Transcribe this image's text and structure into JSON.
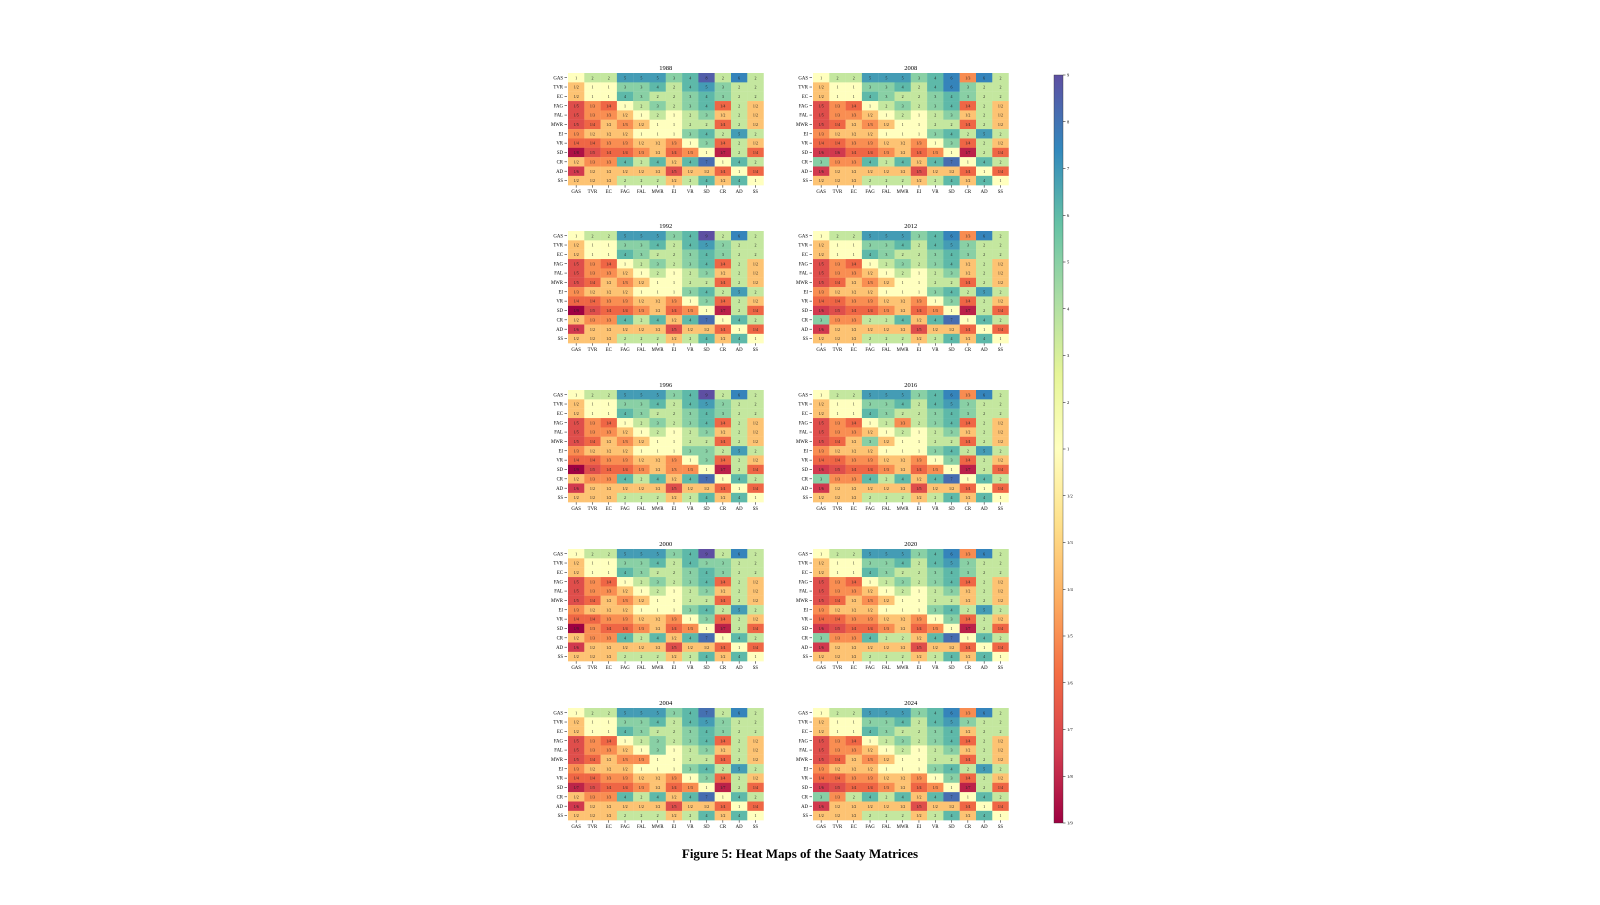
{
  "caption": "Figure 5: Heat Maps of the Saaty Matrices",
  "chart_data": {
    "type": "heatmap",
    "labels": [
      "GAS",
      "TVR",
      "EC",
      "FAG",
      "FAL",
      "MWR",
      "EI",
      "VR",
      "SD",
      "CR",
      "AD",
      "SS"
    ],
    "colorbar": {
      "ticks": [
        "1/9",
        "1/8",
        "1/7",
        "1/6",
        "1/5",
        "1/4",
        "1/3",
        "1/2",
        "1",
        "2",
        "3",
        "4",
        "5",
        "6",
        "7",
        "8",
        "9"
      ],
      "colormap": "Spectral",
      "colors": [
        "#9e0142",
        "#d53e4f",
        "#f46d43",
        "#fdae61",
        "#fee08b",
        "#ffffbf",
        "#e6f598",
        "#abdda4",
        "#66c2a5",
        "#3288bd",
        "#5e4fa2"
      ]
    },
    "matrix_upper_base": [
      [
        1,
        2,
        2,
        5,
        5,
        5,
        3,
        4,
        8,
        2,
        6,
        2
      ],
      [
        1,
        1,
        1,
        3,
        3,
        4,
        2,
        4,
        5,
        3,
        2,
        2
      ],
      [
        1,
        1,
        1,
        4,
        3,
        2,
        2,
        3,
        4,
        3,
        2,
        2
      ],
      [
        1,
        1,
        1,
        1,
        2,
        3,
        2,
        3,
        4,
        0.25,
        2,
        0.5
      ],
      [
        1,
        1,
        1,
        1,
        1,
        2,
        1,
        2,
        3,
        0.5,
        2,
        0.5
      ],
      [
        1,
        1,
        1,
        1,
        1,
        1,
        1,
        2,
        2,
        0.25,
        2,
        0.5
      ],
      [
        1,
        1,
        1,
        1,
        1,
        1,
        1,
        3,
        4,
        2,
        5,
        2
      ],
      [
        1,
        1,
        1,
        1,
        1,
        1,
        1,
        1,
        3,
        0.25,
        2,
        0.5
      ],
      [
        1,
        1,
        1,
        1,
        1,
        1,
        1,
        1,
        1,
        0.14,
        2,
        0.25
      ],
      [
        1,
        1,
        1,
        1,
        1,
        1,
        1,
        1,
        1,
        1,
        4,
        2
      ],
      [
        1,
        1,
        1,
        1,
        1,
        1,
        1,
        1,
        1,
        1,
        1,
        0.25
      ],
      [
        1,
        1,
        1,
        1,
        1,
        1,
        1,
        1,
        1,
        1,
        1,
        1
      ]
    ],
    "panels": [
      {
        "title": "1988",
        "adjust": {}
      },
      {
        "title": "2008",
        "adjust": {
          "0-8": 6,
          "0-9": 0.33,
          "1-8": 6
        }
      },
      {
        "title": "1992",
        "adjust": {
          "0-8": 9
        }
      },
      {
        "title": "2012",
        "adjust": {
          "0-8": 6,
          "0-9": 0.33,
          "3-9": 0.5
        }
      },
      {
        "title": "1996",
        "adjust": {
          "0-8": 9,
          "6-8": 3
        }
      },
      {
        "title": "2016",
        "adjust": {
          "0-8": 6,
          "0-9": 0.33,
          "3-5": 0.33
        }
      },
      {
        "title": "2000",
        "adjust": {
          "0-8": 9,
          "1-8": 3
        }
      },
      {
        "title": "2020",
        "adjust": {
          "0-8": 6,
          "0-9": 0.33,
          "5-9": 0.5
        }
      },
      {
        "title": "2004",
        "adjust": {
          "0-8": 7,
          "4-5": 3
        }
      },
      {
        "title": "2024",
        "adjust": {
          "0-8": 6,
          "0-9": 0.33,
          "2-9": 0.5
        }
      }
    ]
  }
}
